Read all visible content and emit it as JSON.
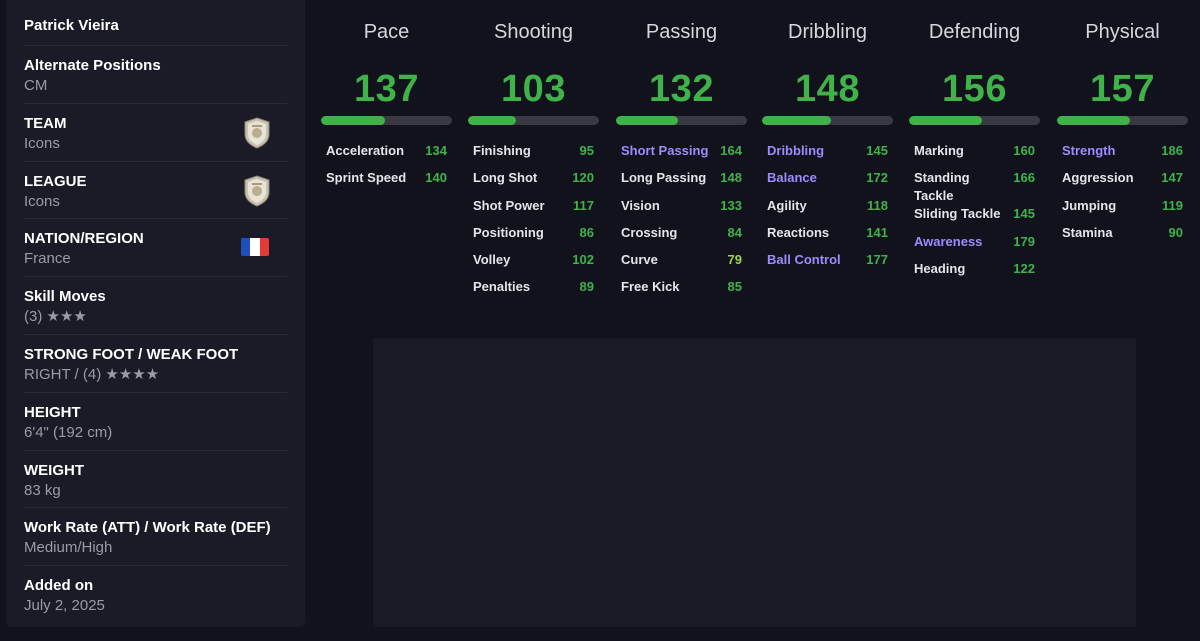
{
  "profile": {
    "name": "Patrick Vieira",
    "rows": [
      {
        "label": "Alternate Positions",
        "value": "CM"
      },
      {
        "label": "TEAM",
        "value": "Icons",
        "icon": "icon-badge"
      },
      {
        "label": "LEAGUE",
        "value": "Icons",
        "icon": "icon-badge"
      },
      {
        "label": "NATION/REGION",
        "value": "France",
        "icon": "france-flag"
      },
      {
        "label": "Skill Moves",
        "value": "(3) ★★★"
      },
      {
        "label": "STRONG FOOT / WEAK FOOT",
        "value": "RIGHT / (4) ★★★★"
      },
      {
        "label": "HEIGHT",
        "value": "6'4\" (192 cm)"
      },
      {
        "label": "WEIGHT",
        "value": "83 kg"
      },
      {
        "label": "Work Rate (ATT) / Work Rate (DEF)",
        "value": "Medium/High"
      },
      {
        "label": "Added on",
        "value": "July 2, 2025"
      }
    ]
  },
  "colors": {
    "green": "#3fb34a",
    "lime": "#9cd446",
    "playstyle_purple": "#9b8cff",
    "bar_track": "#393944"
  },
  "stats": [
    {
      "title": "Pace",
      "value": "137",
      "bar_fraction": 0.49,
      "attributes": [
        {
          "name": "Acceleration",
          "value": "134"
        },
        {
          "name": "Sprint Speed",
          "value": "140"
        }
      ]
    },
    {
      "title": "Shooting",
      "value": "103",
      "bar_fraction": 0.37,
      "attributes": [
        {
          "name": "Finishing",
          "value": "95"
        },
        {
          "name": "Long Shot",
          "value": "120"
        },
        {
          "name": "Shot Power",
          "value": "117"
        },
        {
          "name": "Positioning",
          "value": "86"
        },
        {
          "name": "Volley",
          "value": "102"
        },
        {
          "name": "Penalties",
          "value": "89"
        }
      ]
    },
    {
      "title": "Passing",
      "value": "132",
      "bar_fraction": 0.47,
      "attributes": [
        {
          "name": "Short Passing",
          "value": "164",
          "playstyle": true
        },
        {
          "name": "Long Passing",
          "value": "148"
        },
        {
          "name": "Vision",
          "value": "133"
        },
        {
          "name": "Crossing",
          "value": "84"
        },
        {
          "name": "Curve",
          "value": "79",
          "lime": true
        },
        {
          "name": "Free Kick",
          "value": "85"
        }
      ]
    },
    {
      "title": "Dribbling",
      "value": "148",
      "bar_fraction": 0.53,
      "attributes": [
        {
          "name": "Dribbling",
          "value": "145",
          "playstyle": true
        },
        {
          "name": "Balance",
          "value": "172",
          "playstyle": true
        },
        {
          "name": "Agility",
          "value": "118"
        },
        {
          "name": "Reactions",
          "value": "141"
        },
        {
          "name": "Ball Control",
          "value": "177",
          "playstyle": true
        }
      ]
    },
    {
      "title": "Defending",
      "value": "156",
      "bar_fraction": 0.56,
      "attributes": [
        {
          "name": "Marking",
          "value": "160"
        },
        {
          "name": "Standing Tackle",
          "value": "166"
        },
        {
          "name": "Sliding Tackle",
          "value": "145"
        },
        {
          "name": "Awareness",
          "value": "179",
          "playstyle": true
        },
        {
          "name": "Heading",
          "value": "122"
        }
      ]
    },
    {
      "title": "Physical",
      "value": "157",
      "bar_fraction": 0.56,
      "attributes": [
        {
          "name": "Strength",
          "value": "186",
          "playstyle": true
        },
        {
          "name": "Aggression",
          "value": "147"
        },
        {
          "name": "Jumping",
          "value": "119"
        },
        {
          "name": "Stamina",
          "value": "90"
        }
      ]
    }
  ]
}
